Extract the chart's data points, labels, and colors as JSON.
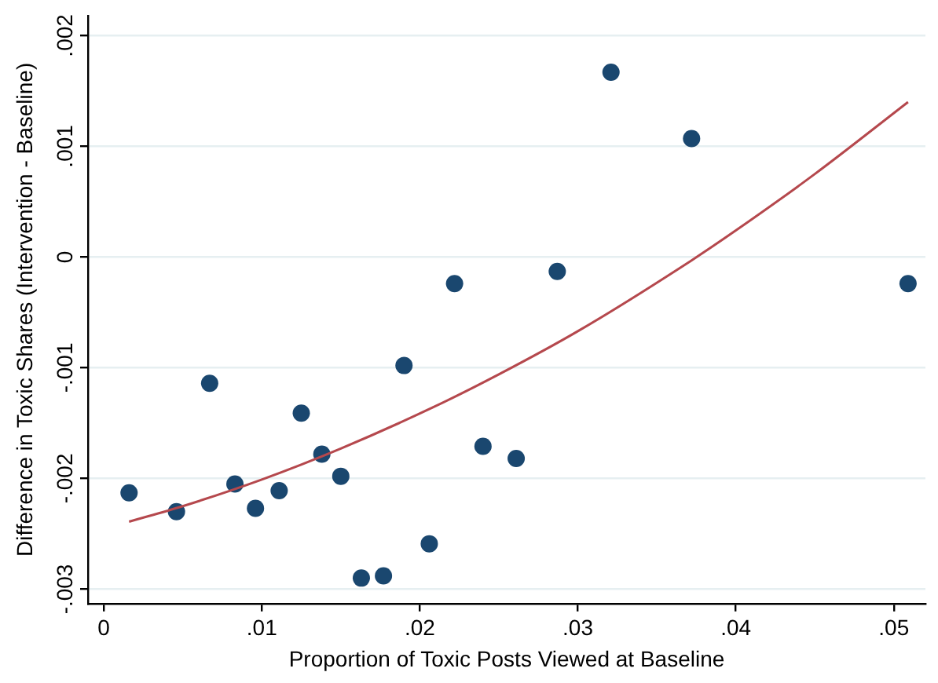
{
  "chart_data": {
    "type": "scatter",
    "xlabel": "Proportion of Toxic Posts Viewed at Baseline",
    "ylabel": "Difference in Toxic Shares (Intervention - Baseline)",
    "xlim": [
      -0.001,
      0.052
    ],
    "ylim": [
      -0.00313,
      0.00218
    ],
    "xticks": [
      {
        "value": 0,
        "label": "0"
      },
      {
        "value": 0.01,
        "label": ".01"
      },
      {
        "value": 0.02,
        "label": ".02"
      },
      {
        "value": 0.03,
        "label": ".03"
      },
      {
        "value": 0.04,
        "label": ".04"
      },
      {
        "value": 0.05,
        "label": ".05"
      }
    ],
    "yticks": [
      {
        "value": -0.003,
        "label": "-.003"
      },
      {
        "value": -0.002,
        "label": "-.002"
      },
      {
        "value": -0.001,
        "label": "-.001"
      },
      {
        "value": 0,
        "label": "0"
      },
      {
        "value": 0.001,
        "label": ".001"
      },
      {
        "value": 0.002,
        "label": ".002"
      }
    ],
    "grid": "y",
    "legend": false,
    "marker": "circle",
    "series": [
      {
        "color": "#1a476f",
        "x": [
          0.0016,
          0.0046,
          0.0067,
          0.0083,
          0.0096,
          0.0111,
          0.0125,
          0.0138,
          0.015,
          0.0163,
          0.0177,
          0.019,
          0.0206,
          0.0222,
          0.024,
          0.0261,
          0.0287,
          0.0321,
          0.0372,
          0.0509
        ],
        "values": [
          -0.00213,
          -0.0023,
          -0.00114,
          -0.00205,
          -0.00227,
          -0.00211,
          -0.00141,
          -0.00178,
          -0.00198,
          -0.0029,
          -0.00288,
          -0.00098,
          -0.00259,
          -0.00024,
          -0.00171,
          -0.00182,
          -0.00013,
          0.00167,
          0.00107,
          -0.00024
        ]
      },
      {
        "type": "line",
        "color": "#b5484d",
        "marker": "none",
        "x": [
          0.0016,
          0.005,
          0.01,
          0.015,
          0.0208,
          0.025,
          0.03,
          0.0372,
          0.04,
          0.045,
          0.0509
        ],
        "values": [
          -0.00239,
          -0.00225,
          -0.00201,
          -0.00173,
          -0.00136,
          -0.00106,
          -0.00067,
          -3e-05,
          0.00024,
          0.00075,
          0.0014
        ]
      }
    ]
  }
}
